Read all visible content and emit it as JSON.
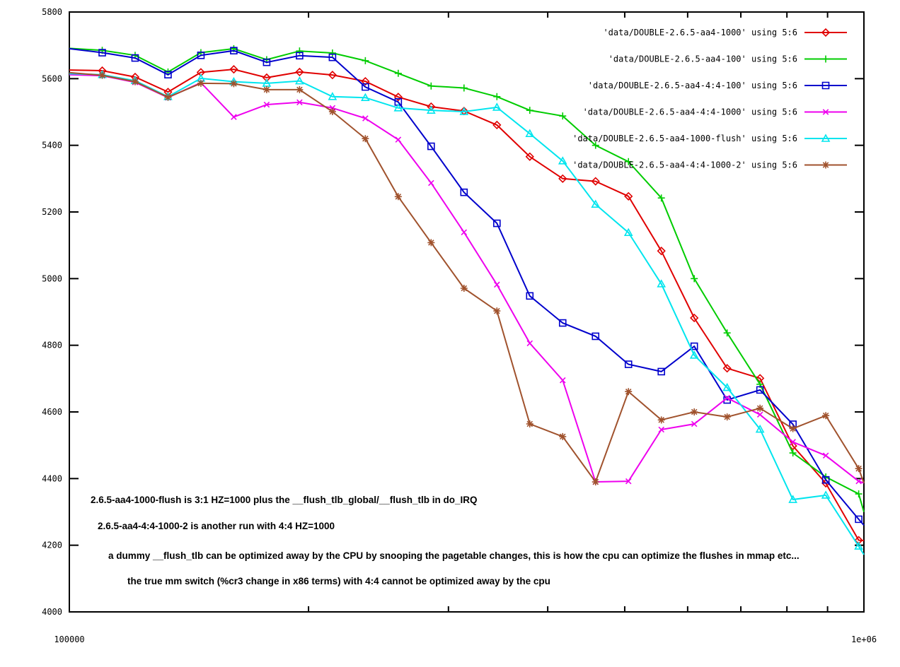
{
  "chart_data": {
    "type": "line",
    "title": "",
    "xlabel": "",
    "ylabel": "",
    "grid": false,
    "legend_position": "top-right-inside",
    "x_axis": {
      "scale": "log",
      "min": 100000,
      "max": 1000000,
      "tick_labels": [
        {
          "value": 100000,
          "label": "100000"
        },
        {
          "value": 1000000,
          "label": "1e+06"
        }
      ],
      "minor_ticks": [
        200000,
        300000,
        400000,
        500000,
        600000,
        700000,
        800000,
        900000
      ]
    },
    "y_axis": {
      "min": 4000,
      "max": 5800,
      "tick_step": 200,
      "tick_labels": [
        "4000",
        "4200",
        "4400",
        "4600",
        "4800",
        "5000",
        "5200",
        "5400",
        "5600",
        "5800"
      ]
    },
    "x": [
      100000,
      110000,
      121000,
      133100,
      146410,
      161051,
      177156,
      194872,
      214359,
      235795,
      259374,
      285312,
      313843,
      345227,
      379750,
      417725,
      459497,
      505447,
      555992,
      611591,
      672750,
      740025,
      814027,
      895430,
      984973,
      1000000
    ],
    "series": [
      {
        "name": "'data/DOUBLE-2.6.5-aa4-1000' using 5:6",
        "color": "#e00000",
        "marker": "diamond",
        "values": [
          5626,
          5624,
          5605,
          5560,
          5619,
          5628,
          5603,
          5620,
          5611,
          5592,
          5545,
          5516,
          5503,
          5461,
          5366,
          5300,
          5292,
          5247,
          5083,
          4882,
          4731,
          4701,
          4498,
          4386,
          4215,
          4214
        ]
      },
      {
        "name": "'data/DOUBLE-2.6.5-aa4-100' using 5:6",
        "color": "#00cc00",
        "marker": "plus",
        "values": [
          5691,
          5685,
          5670,
          5620,
          5678,
          5690,
          5657,
          5683,
          5677,
          5654,
          5616,
          5578,
          5572,
          5546,
          5505,
          5488,
          5400,
          5351,
          5242,
          5000,
          4837,
          4683,
          4477,
          4405,
          4354,
          4300
        ]
      },
      {
        "name": "'data/DOUBLE-2.6.5-aa4-4:4-100' using 5:6",
        "color": "#0000cc",
        "marker": "square",
        "values": [
          5690,
          5678,
          5662,
          5612,
          5670,
          5684,
          5649,
          5669,
          5664,
          5575,
          5530,
          5397,
          5259,
          5166,
          4948,
          4867,
          4827,
          4743,
          4721,
          4797,
          4636,
          4666,
          4563,
          4396,
          4278,
          4260
        ]
      },
      {
        "name": "'data/DOUBLE-2.6.5-aa4-4:4-1000' using 5:6",
        "color": "#ee00ee",
        "marker": "cross",
        "values": [
          5612,
          5609,
          5589,
          5543,
          5588,
          5485,
          5522,
          5529,
          5512,
          5481,
          5417,
          5287,
          5139,
          4982,
          4806,
          4695,
          4390,
          4392,
          4547,
          4564,
          4642,
          4592,
          4510,
          4469,
          4392,
          4387
        ]
      },
      {
        "name": "'data/DOUBLE-2.6.5-aa4-1000-flush' using 5:6",
        "color": "#00e5ee",
        "marker": "triangle",
        "values": [
          5615,
          5612,
          5594,
          5546,
          5601,
          5591,
          5586,
          5593,
          5546,
          5543,
          5512,
          5505,
          5501,
          5514,
          5435,
          5353,
          5223,
          5138,
          4984,
          4770,
          4673,
          4548,
          4337,
          4350,
          4197,
          4172
        ]
      },
      {
        "name": "'data/DOUBLE-2.6.5-aa4-4:4-1000-2' using 5:6",
        "color": "#a0522d",
        "marker": "star",
        "values": [
          5618,
          5610,
          5591,
          5544,
          5586,
          5585,
          5567,
          5567,
          5501,
          5420,
          5246,
          5108,
          4971,
          4903,
          4564,
          4526,
          4390,
          4661,
          4576,
          4600,
          4585,
          4611,
          4550,
          4589,
          4430,
          4387
        ]
      }
    ],
    "annotations": [
      {
        "x": 128,
        "y": 712,
        "text": "2.6.5-aa4-1000-flush is 3:1 HZ=1000 plus the __flush_tlb_global/__flush_tlb in do_IRQ"
      },
      {
        "x": 138,
        "y": 749,
        "text": "2.6.5-aa4-4:4-1000-2 is another run with 4:4 HZ=1000"
      },
      {
        "x": 153,
        "y": 791,
        "text": "a dummy __flush_tlb can be optimized away by the CPU by snooping the pagetable changes, this is how the cpu can optimize the flushes in mmap etc..."
      },
      {
        "x": 180,
        "y": 827,
        "text": "the true mm switch (%cr3 change in x86 terms) with 4:4 cannot be optimized away by the cpu"
      }
    ]
  }
}
